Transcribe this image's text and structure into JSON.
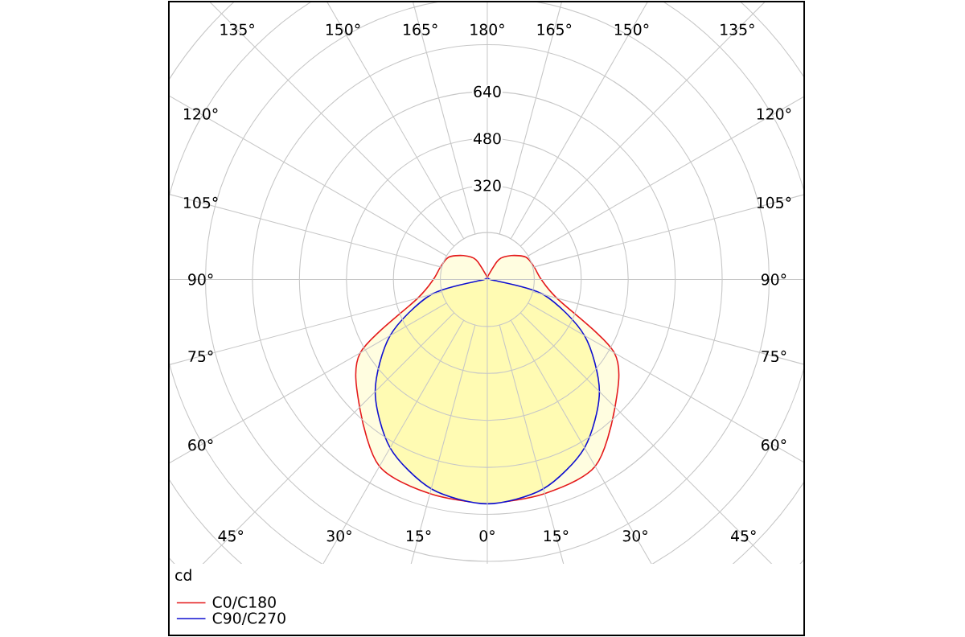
{
  "chart_data": {
    "type": "radar",
    "ylabel": "cd",
    "categories": [
      "180°",
      "165°",
      "150°",
      "135°",
      "120°",
      "105°",
      "90°",
      "75°",
      "60°",
      "45°",
      "30°",
      "15°",
      "0°",
      "15°",
      "30°",
      "45°",
      "60°",
      "75°",
      "90°",
      "105°",
      "120°",
      "135°",
      "150°",
      "165°"
    ],
    "series": [
      {
        "name": "C0/C180",
        "color": "#e41a1c",
        "values": [
          0,
          15,
          78,
          115,
          152,
          165,
          184,
          245,
          500,
          615,
          735,
          755,
          760,
          755,
          735,
          615,
          500,
          245,
          184,
          165,
          152,
          115,
          78,
          15
        ]
      },
      {
        "name": "C90/C270",
        "color": "#1010d0",
        "values": [
          0,
          0,
          0,
          0,
          0,
          0,
          10,
          198,
          382,
          540,
          662,
          738,
          764,
          738,
          662,
          540,
          382,
          198,
          10,
          0,
          0,
          0,
          0,
          0
        ]
      }
    ],
    "ylim": [
      0,
      1440
    ],
    "yticks": [
      320,
      480,
      640
    ],
    "grid": true,
    "legend": "bottom left"
  }
}
